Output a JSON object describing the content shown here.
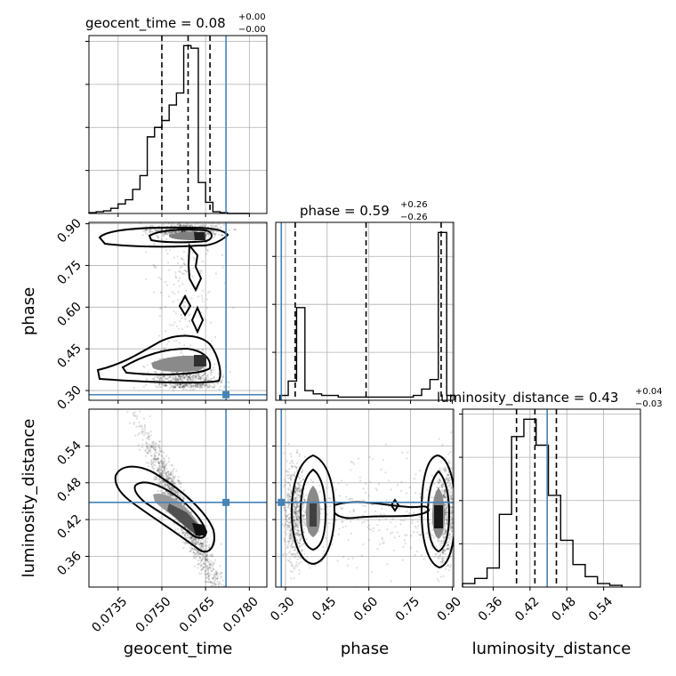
{
  "chart_data": {
    "type": "corner",
    "parameters": [
      "geocent_time",
      "phase",
      "luminosity_distance"
    ],
    "truths": {
      "geocent_time": 0.0772,
      "phase": 0.285,
      "luminosity_distance": 0.448
    },
    "titles": [
      {
        "name": "geocent_time",
        "median": "0.08",
        "upper": "+0.00",
        "lower": "−0.00"
      },
      {
        "name": "phase",
        "median": "0.59",
        "upper": "+0.26",
        "lower": "−0.26"
      },
      {
        "name": "luminosity_distance",
        "median": "0.43",
        "upper": "+0.04",
        "lower": "−0.03"
      }
    ],
    "axes": {
      "geocent_time": {
        "range": [
          0.0725,
          0.0786
        ],
        "ticks": [
          "0.0735",
          "0.0750",
          "0.0765",
          "0.0780"
        ]
      },
      "phase": {
        "range": [
          0.265,
          0.905
        ],
        "ticks": [
          "0.30",
          "0.45",
          "0.60",
          "0.75",
          "0.90"
        ]
      },
      "luminosity_distance": {
        "range": [
          0.31,
          0.6
        ],
        "ticks": [
          "0.36",
          "0.42",
          "0.48",
          "0.54"
        ]
      }
    },
    "hist_geocent_time": {
      "edges": [
        0.0725,
        0.07275,
        0.073,
        0.07325,
        0.0735,
        0.07375,
        0.074,
        0.07425,
        0.0745,
        0.07475,
        0.075,
        0.07525,
        0.0755,
        0.07575,
        0.076,
        0.07625,
        0.0765,
        0.07675,
        0.077,
        0.07725,
        0.0775,
        0.07775,
        0.078
      ],
      "counts": [
        1,
        2,
        3,
        6,
        11,
        16,
        28,
        44,
        89,
        100,
        108,
        126,
        140,
        195,
        192,
        36,
        13,
        2,
        1,
        0,
        0,
        0
      ],
      "quantiles": [
        0.075,
        0.0759,
        0.07665
      ]
    },
    "hist_phase": {
      "edges": [
        0.28,
        0.31,
        0.34,
        0.37,
        0.4,
        0.43,
        0.46,
        0.49,
        0.52,
        0.55,
        0.58,
        0.61,
        0.64,
        0.67,
        0.7,
        0.73,
        0.76,
        0.79,
        0.82,
        0.85,
        0.88,
        0.91
      ],
      "counts": [
        3,
        12,
        58,
        6,
        4,
        3,
        3,
        2,
        2,
        2,
        2,
        2,
        2,
        2,
        2,
        2,
        3,
        7,
        13,
        105,
        3
      ],
      "quantiles": [
        0.335,
        0.59,
        0.86
      ]
    },
    "hist_luminosity_distance": {
      "edges": [
        0.31,
        0.33,
        0.35,
        0.37,
        0.39,
        0.41,
        0.43,
        0.45,
        0.47,
        0.49,
        0.51,
        0.53,
        0.55,
        0.57
      ],
      "counts": [
        2,
        5,
        11,
        42,
        87,
        97,
        82,
        53,
        27,
        13,
        6,
        2,
        1
      ],
      "quantiles": [
        0.398,
        0.428,
        0.463
      ]
    }
  }
}
